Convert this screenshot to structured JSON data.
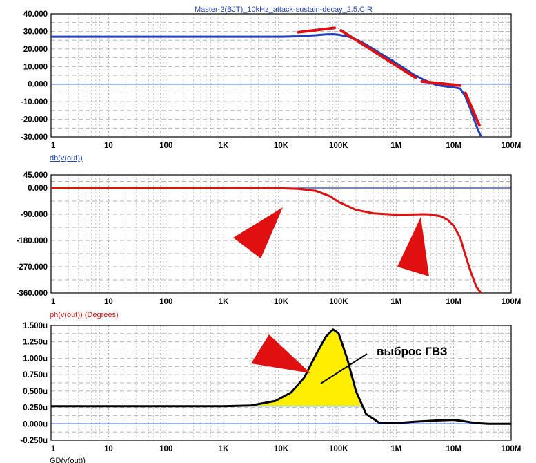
{
  "title": "Master-2(BJT)_10kHz_attack-sustain-decay_2.5.CIR",
  "annotation": "выброс ГВЗ",
  "x_tick_labels": [
    "1",
    "10",
    "100",
    "1K",
    "10K",
    "100K",
    "1M",
    "10M",
    "100M"
  ],
  "colors": {
    "blue": "#1f3fbf",
    "red": "#e01010",
    "black": "#000000",
    "fill": "#ffee00",
    "grid": "#9a9a9a"
  },
  "chart_data": [
    {
      "type": "line",
      "ylabel": "db(v(out))",
      "xscale": "log",
      "xlim": [
        1,
        100000000
      ],
      "ylim": [
        -30,
        40
      ],
      "y_tick_labels": [
        "40.000",
        "30.000",
        "20.000",
        "10.000",
        "0.000",
        "-10.000",
        "-20.000",
        "-30.000"
      ],
      "series": [
        {
          "name": "db(v(out))",
          "color": "#1f3fbf",
          "x": [
            1,
            10,
            100,
            1000,
            10000,
            20000,
            40000,
            60000,
            80000,
            100000,
            150000,
            200000,
            300000,
            500000,
            1000000,
            2000000,
            3000000,
            5000000,
            8000000,
            10000000,
            13000000,
            16000000,
            20000000,
            25000000,
            30000000
          ],
          "y": [
            27,
            27,
            27,
            27,
            27,
            27.2,
            27.8,
            28.3,
            28.4,
            28.1,
            27,
            25.5,
            22.5,
            18,
            12,
            5.5,
            2.5,
            -0.5,
            -1.5,
            -1.8,
            -2.5,
            -7,
            -15,
            -24,
            -30
          ]
        }
      ],
      "overlay_segments": [
        {
          "color": "#e01010",
          "x": [
            20000,
            85000
          ],
          "y": [
            29.5,
            32
          ]
        },
        {
          "color": "#e01010",
          "x": [
            110000,
            2200000
          ],
          "y": [
            30.5,
            3.5
          ]
        },
        {
          "color": "#e01010",
          "x": [
            2800000,
            13000000
          ],
          "y": [
            1.5,
            -0.8
          ]
        },
        {
          "color": "#e01010",
          "x": [
            16000000,
            28000000
          ],
          "y": [
            -5,
            -23.5
          ]
        }
      ]
    },
    {
      "type": "line",
      "ylabel": "ph(v(out)) (Degrees)",
      "xscale": "log",
      "xlim": [
        1,
        100000000
      ],
      "ylim": [
        -360,
        45
      ],
      "y_tick_labels": [
        "45.000",
        "0.000",
        "-90.000",
        "-180.000",
        "-270.000",
        "-360.000"
      ],
      "y_tick_values": [
        45,
        0,
        -90,
        -180,
        -270,
        -360
      ],
      "series": [
        {
          "name": "ph(v(out))",
          "color": "#e01010",
          "x": [
            1,
            10,
            100,
            1000,
            10000,
            20000,
            40000,
            70000,
            100000,
            200000,
            400000,
            1000000,
            2000000,
            3000000,
            4000000,
            6000000,
            8000000,
            10000000,
            13000000,
            16000000,
            20000000,
            25000000,
            30000000
          ],
          "y": [
            0,
            0,
            0,
            0,
            -1,
            -3,
            -10,
            -28,
            -48,
            -75,
            -87,
            -92,
            -91,
            -90,
            -91,
            -97,
            -110,
            -130,
            -170,
            -230,
            -290,
            -340,
            -360
          ]
        }
      ]
    },
    {
      "type": "area",
      "ylabel": "GD(v(out))",
      "xscale": "log",
      "xlim": [
        1,
        100000000
      ],
      "ylim": [
        -0.25,
        1.5
      ],
      "y_tick_labels": [
        "1.500u",
        "1.250u",
        "1.000u",
        "0.750u",
        "0.500u",
        "0.250u",
        "0.000u",
        "-0.250u"
      ],
      "series": [
        {
          "name": "GD(v(out))",
          "color": "#000000",
          "x": [
            1,
            10,
            100,
            1000,
            3000,
            8000,
            15000,
            25000,
            40000,
            60000,
            80000,
            100000,
            140000,
            200000,
            300000,
            500000,
            1000000,
            2000000,
            5000000,
            10000000,
            15000000,
            25000000,
            40000000,
            100000000
          ],
          "y": [
            0.27,
            0.27,
            0.27,
            0.27,
            0.28,
            0.35,
            0.48,
            0.7,
            1.05,
            1.33,
            1.44,
            1.38,
            1.0,
            0.5,
            0.15,
            0.02,
            0.01,
            0.03,
            0.05,
            0.06,
            0.04,
            0.01,
            0.0,
            0.0
          ]
        }
      ],
      "fill_region": {
        "x_from": 3000,
        "x_to": 280000,
        "baseline": 0.27,
        "color": "#ffee00",
        "baseline_color": "#7fb0a0"
      }
    }
  ]
}
